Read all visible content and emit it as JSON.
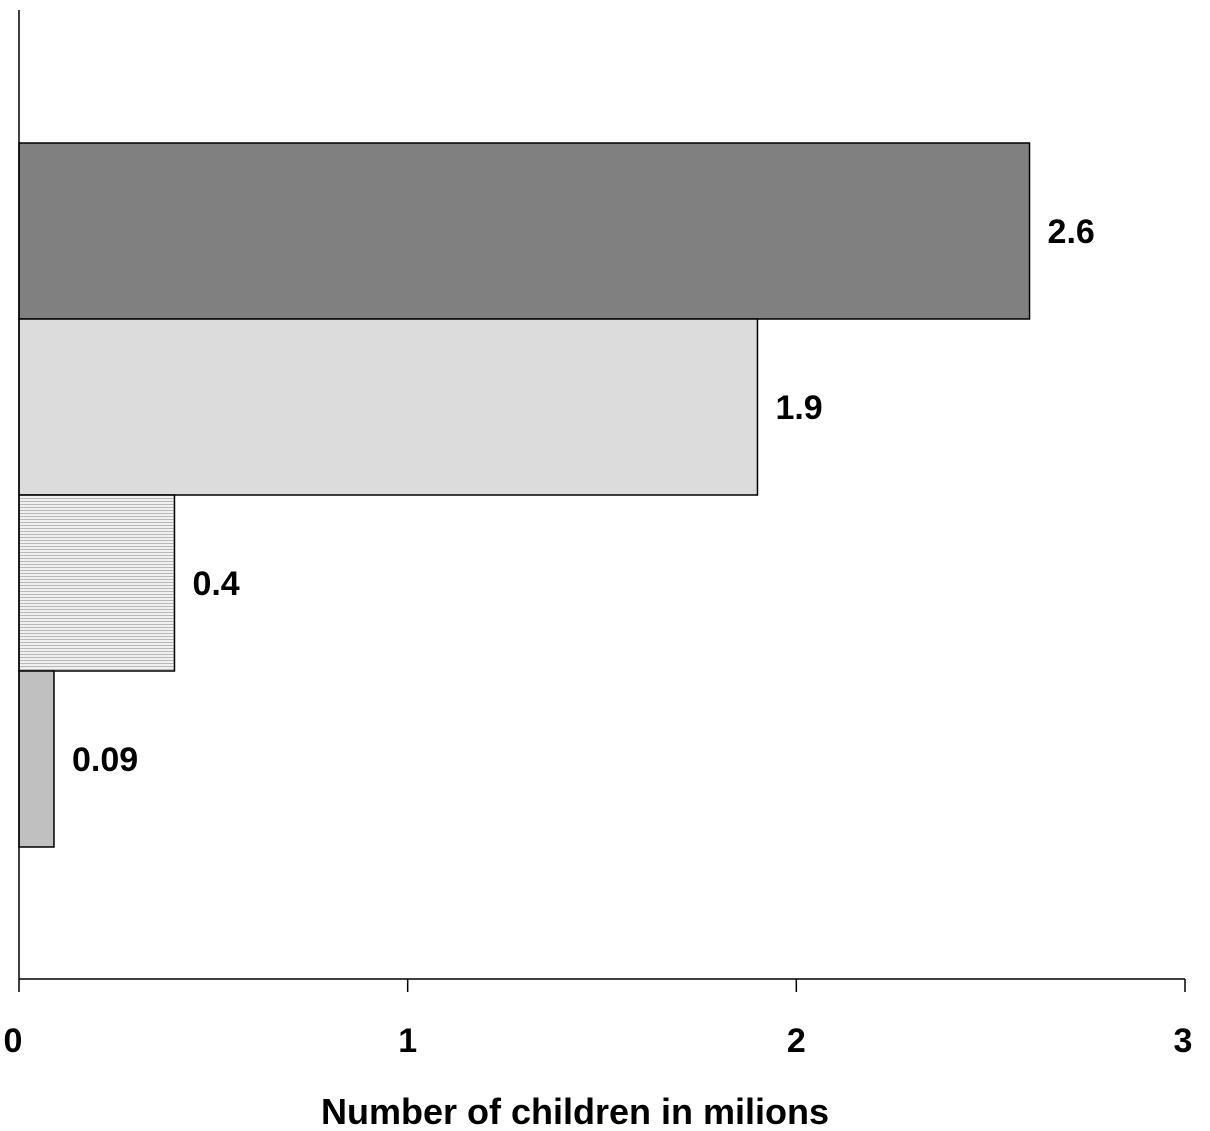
{
  "chart_data": {
    "type": "bar",
    "orientation": "horizontal",
    "values": [
      2.6,
      1.9,
      0.4,
      0.09
    ],
    "data_labels": [
      "2.6",
      "1.9",
      "0.4",
      "0.09"
    ],
    "bar_colors": [
      "#808080",
      "#dcdcdc",
      "#e6e6e6",
      "#c0c0c0"
    ],
    "bar_patterns": [
      "solid",
      "solid",
      "horizontal-lines",
      "solid"
    ],
    "xlabel": "Number of children in milions",
    "xlim": [
      0,
      3
    ],
    "xticks": [
      0,
      1,
      2,
      3
    ],
    "xtick_labels": [
      "0",
      "1",
      "2",
      "3"
    ],
    "grid": false,
    "legend": "none"
  }
}
